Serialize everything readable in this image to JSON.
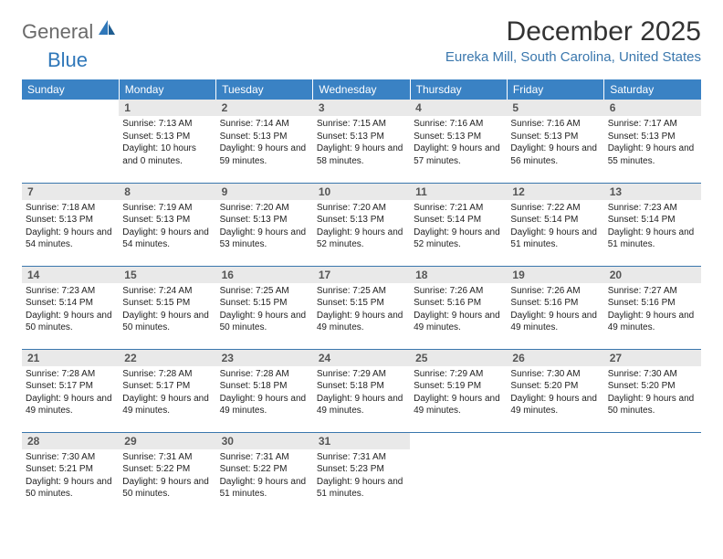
{
  "brand": {
    "part1": "General",
    "part2": "Blue"
  },
  "title": "December 2025",
  "location": "Eureka Mill, South Carolina, United States",
  "colors": {
    "header_bg": "#3a82c4",
    "header_text": "#ffffff",
    "daynum_bg": "#e9e9e9",
    "rule": "#3a77ad",
    "accent": "#2f77b9",
    "logo_gray": "#6a6a6a"
  },
  "weekdays": [
    "Sunday",
    "Monday",
    "Tuesday",
    "Wednesday",
    "Thursday",
    "Friday",
    "Saturday"
  ],
  "weeks": [
    [
      null,
      {
        "d": "1",
        "sr": "Sunrise: 7:13 AM",
        "ss": "Sunset: 5:13 PM",
        "dl": "Daylight: 10 hours and 0 minutes."
      },
      {
        "d": "2",
        "sr": "Sunrise: 7:14 AM",
        "ss": "Sunset: 5:13 PM",
        "dl": "Daylight: 9 hours and 59 minutes."
      },
      {
        "d": "3",
        "sr": "Sunrise: 7:15 AM",
        "ss": "Sunset: 5:13 PM",
        "dl": "Daylight: 9 hours and 58 minutes."
      },
      {
        "d": "4",
        "sr": "Sunrise: 7:16 AM",
        "ss": "Sunset: 5:13 PM",
        "dl": "Daylight: 9 hours and 57 minutes."
      },
      {
        "d": "5",
        "sr": "Sunrise: 7:16 AM",
        "ss": "Sunset: 5:13 PM",
        "dl": "Daylight: 9 hours and 56 minutes."
      },
      {
        "d": "6",
        "sr": "Sunrise: 7:17 AM",
        "ss": "Sunset: 5:13 PM",
        "dl": "Daylight: 9 hours and 55 minutes."
      }
    ],
    [
      {
        "d": "7",
        "sr": "Sunrise: 7:18 AM",
        "ss": "Sunset: 5:13 PM",
        "dl": "Daylight: 9 hours and 54 minutes."
      },
      {
        "d": "8",
        "sr": "Sunrise: 7:19 AM",
        "ss": "Sunset: 5:13 PM",
        "dl": "Daylight: 9 hours and 54 minutes."
      },
      {
        "d": "9",
        "sr": "Sunrise: 7:20 AM",
        "ss": "Sunset: 5:13 PM",
        "dl": "Daylight: 9 hours and 53 minutes."
      },
      {
        "d": "10",
        "sr": "Sunrise: 7:20 AM",
        "ss": "Sunset: 5:13 PM",
        "dl": "Daylight: 9 hours and 52 minutes."
      },
      {
        "d": "11",
        "sr": "Sunrise: 7:21 AM",
        "ss": "Sunset: 5:14 PM",
        "dl": "Daylight: 9 hours and 52 minutes."
      },
      {
        "d": "12",
        "sr": "Sunrise: 7:22 AM",
        "ss": "Sunset: 5:14 PM",
        "dl": "Daylight: 9 hours and 51 minutes."
      },
      {
        "d": "13",
        "sr": "Sunrise: 7:23 AM",
        "ss": "Sunset: 5:14 PM",
        "dl": "Daylight: 9 hours and 51 minutes."
      }
    ],
    [
      {
        "d": "14",
        "sr": "Sunrise: 7:23 AM",
        "ss": "Sunset: 5:14 PM",
        "dl": "Daylight: 9 hours and 50 minutes."
      },
      {
        "d": "15",
        "sr": "Sunrise: 7:24 AM",
        "ss": "Sunset: 5:15 PM",
        "dl": "Daylight: 9 hours and 50 minutes."
      },
      {
        "d": "16",
        "sr": "Sunrise: 7:25 AM",
        "ss": "Sunset: 5:15 PM",
        "dl": "Daylight: 9 hours and 50 minutes."
      },
      {
        "d": "17",
        "sr": "Sunrise: 7:25 AM",
        "ss": "Sunset: 5:15 PM",
        "dl": "Daylight: 9 hours and 49 minutes."
      },
      {
        "d": "18",
        "sr": "Sunrise: 7:26 AM",
        "ss": "Sunset: 5:16 PM",
        "dl": "Daylight: 9 hours and 49 minutes."
      },
      {
        "d": "19",
        "sr": "Sunrise: 7:26 AM",
        "ss": "Sunset: 5:16 PM",
        "dl": "Daylight: 9 hours and 49 minutes."
      },
      {
        "d": "20",
        "sr": "Sunrise: 7:27 AM",
        "ss": "Sunset: 5:16 PM",
        "dl": "Daylight: 9 hours and 49 minutes."
      }
    ],
    [
      {
        "d": "21",
        "sr": "Sunrise: 7:28 AM",
        "ss": "Sunset: 5:17 PM",
        "dl": "Daylight: 9 hours and 49 minutes."
      },
      {
        "d": "22",
        "sr": "Sunrise: 7:28 AM",
        "ss": "Sunset: 5:17 PM",
        "dl": "Daylight: 9 hours and 49 minutes."
      },
      {
        "d": "23",
        "sr": "Sunrise: 7:28 AM",
        "ss": "Sunset: 5:18 PM",
        "dl": "Daylight: 9 hours and 49 minutes."
      },
      {
        "d": "24",
        "sr": "Sunrise: 7:29 AM",
        "ss": "Sunset: 5:18 PM",
        "dl": "Daylight: 9 hours and 49 minutes."
      },
      {
        "d": "25",
        "sr": "Sunrise: 7:29 AM",
        "ss": "Sunset: 5:19 PM",
        "dl": "Daylight: 9 hours and 49 minutes."
      },
      {
        "d": "26",
        "sr": "Sunrise: 7:30 AM",
        "ss": "Sunset: 5:20 PM",
        "dl": "Daylight: 9 hours and 49 minutes."
      },
      {
        "d": "27",
        "sr": "Sunrise: 7:30 AM",
        "ss": "Sunset: 5:20 PM",
        "dl": "Daylight: 9 hours and 50 minutes."
      }
    ],
    [
      {
        "d": "28",
        "sr": "Sunrise: 7:30 AM",
        "ss": "Sunset: 5:21 PM",
        "dl": "Daylight: 9 hours and 50 minutes."
      },
      {
        "d": "29",
        "sr": "Sunrise: 7:31 AM",
        "ss": "Sunset: 5:22 PM",
        "dl": "Daylight: 9 hours and 50 minutes."
      },
      {
        "d": "30",
        "sr": "Sunrise: 7:31 AM",
        "ss": "Sunset: 5:22 PM",
        "dl": "Daylight: 9 hours and 51 minutes."
      },
      {
        "d": "31",
        "sr": "Sunrise: 7:31 AM",
        "ss": "Sunset: 5:23 PM",
        "dl": "Daylight: 9 hours and 51 minutes."
      },
      null,
      null,
      null
    ]
  ]
}
